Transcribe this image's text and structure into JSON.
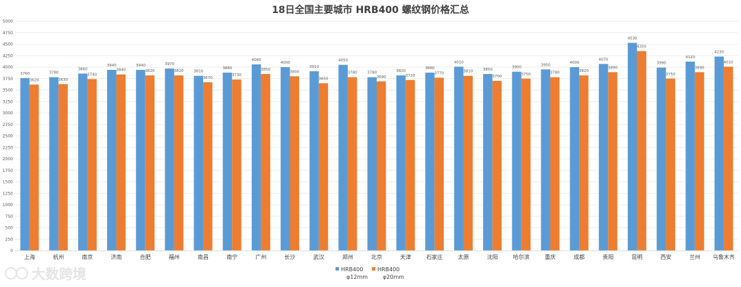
{
  "chart_data": {
    "type": "bar",
    "title": "18日全国主要城市 HRB400 螺纹钢价格汇总",
    "categories": [
      "上海",
      "杭州",
      "南京",
      "济南",
      "合肥",
      "福州",
      "南昌",
      "南宁",
      "广州",
      "长沙",
      "武汉",
      "郑州",
      "北京",
      "天津",
      "石家庄",
      "太原",
      "沈阳",
      "哈尔滨",
      "重庆",
      "成都",
      "贵阳",
      "昆明",
      "西安",
      "兰州",
      "乌鲁木齐"
    ],
    "series": [
      {
        "name": "HRB400 φ12mm",
        "name_line1": "HRB400",
        "name_line2": "φ12mm",
        "color": "#5b9bd5",
        "values": [
          3760,
          3780,
          3860,
          3940,
          3940,
          3970,
          3810,
          3880,
          4060,
          4000,
          3910,
          4050,
          3780,
          3820,
          3880,
          4010,
          3850,
          3900,
          3950,
          4000,
          4070,
          4530,
          3990,
          4120,
          4230
        ]
      },
      {
        "name": "HRB400 φ20mm",
        "name_line1": "HRB400",
        "name_line2": "φ20mm",
        "color": "#ed7d31",
        "values": [
          3620,
          3630,
          3740,
          3840,
          3820,
          3820,
          3670,
          3730,
          3850,
          3800,
          3650,
          3780,
          3690,
          3720,
          3770,
          3810,
          3700,
          3750,
          3780,
          3820,
          3890,
          4350,
          3750,
          3890,
          4010
        ]
      }
    ],
    "ylim": [
      0,
      5000
    ],
    "ytick_step": 250,
    "grid": true,
    "legend": "bottom",
    "xlabel": "",
    "ylabel": ""
  },
  "watermark": "大数跨境"
}
